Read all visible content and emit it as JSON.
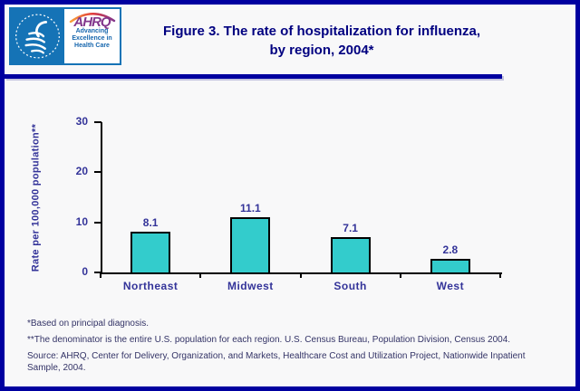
{
  "header": {
    "logo": {
      "ahrq_acronym": "AHRQ",
      "ahrq_tagline_lines": [
        "Advancing",
        "Excellence in",
        "Health Care"
      ]
    },
    "title_lines": [
      "Figure 3. The rate of hospitalization for influenza,",
      "by region, 2004*"
    ]
  },
  "chart_data": {
    "type": "bar",
    "categories": [
      "Northeast",
      "Midwest",
      "South",
      "West"
    ],
    "values": [
      8.1,
      11.1,
      7.1,
      2.8
    ],
    "value_labels": [
      "8.1",
      "11.1",
      "7.1",
      "2.8"
    ],
    "title": "Figure 3. The rate of hospitalization for influenza, by region, 2004*",
    "xlabel": "",
    "ylabel": "Rate per 100,000 population**",
    "ylim": [
      0,
      30
    ],
    "yticks": [
      0,
      10,
      20,
      30
    ],
    "grid": false,
    "legend_position": "none",
    "bar_color": "#33CCCC",
    "bar_border_color": "#000000"
  },
  "footnotes": [
    "*Based on principal diagnosis.",
    "**The denominator is the entire U.S. population for each region. U.S. Census Bureau, Population Division, Census 2004.",
    "Source: AHRQ, Center for Delivery, Organization, and Markets, Healthcare Cost and Utilization Project, Nationwide Inpatient Sample, 2004."
  ],
  "colors": {
    "page_border": "#0000A0",
    "title_text": "#000080",
    "axis_text": "#333399",
    "footnote_text": "#333366",
    "background": "#F8F8F9",
    "hhs_blue": "#1573B6",
    "ahrq_purple": "#82368C"
  }
}
